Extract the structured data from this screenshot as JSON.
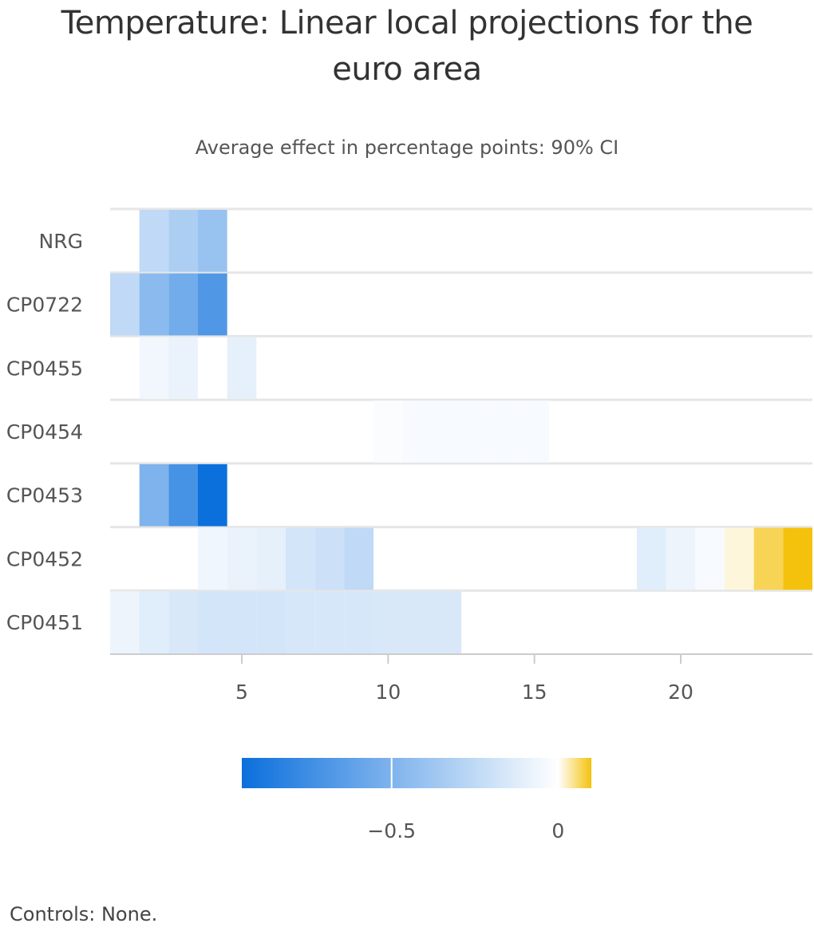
{
  "chart_data": {
    "type": "heatmap",
    "title": "Temperature: Linear local projections for the euro area",
    "subtitle": "Average effect in percentage points: 90% CI",
    "y_categories": [
      "NRG",
      "CP0722",
      "CP0455",
      "CP0454",
      "CP0453",
      "CP0452",
      "CP0451"
    ],
    "x_ticks": [
      5,
      10,
      15,
      20
    ],
    "x_range": [
      0.5,
      24.5
    ],
    "color_axis": {
      "min": -0.95,
      "max": 0.1,
      "min_color": "#0b6fdc",
      "mid_color": "#ffffff",
      "max_color": "#f4c20d",
      "ticks": [
        -0.5,
        0
      ],
      "tick_labels": [
        "−0.5",
        "0"
      ]
    },
    "cells": [
      {
        "row": "NRG",
        "x": 2,
        "value": -0.25
      },
      {
        "row": "NRG",
        "x": 3,
        "value": -0.32
      },
      {
        "row": "NRG",
        "x": 4,
        "value": -0.4
      },
      {
        "row": "CP0722",
        "x": 1,
        "value": -0.25
      },
      {
        "row": "CP0722",
        "x": 2,
        "value": -0.45
      },
      {
        "row": "CP0722",
        "x": 3,
        "value": -0.55
      },
      {
        "row": "CP0722",
        "x": 4,
        "value": -0.68
      },
      {
        "row": "CP0455",
        "x": 2,
        "value": -0.05
      },
      {
        "row": "CP0455",
        "x": 3,
        "value": -0.08
      },
      {
        "row": "CP0455",
        "x": 5,
        "value": -0.1
      },
      {
        "row": "CP0454",
        "x": 10,
        "value": -0.02
      },
      {
        "row": "CP0454",
        "x": 11,
        "value": -0.03
      },
      {
        "row": "CP0454",
        "x": 12,
        "value": -0.03
      },
      {
        "row": "CP0454",
        "x": 13,
        "value": -0.03
      },
      {
        "row": "CP0454",
        "x": 14,
        "value": -0.03
      },
      {
        "row": "CP0454",
        "x": 15,
        "value": -0.03
      },
      {
        "row": "CP0453",
        "x": 2,
        "value": -0.5
      },
      {
        "row": "CP0453",
        "x": 3,
        "value": -0.72
      },
      {
        "row": "CP0453",
        "x": 4,
        "value": -0.95
      },
      {
        "row": "CP0452",
        "x": 4,
        "value": -0.06
      },
      {
        "row": "CP0452",
        "x": 5,
        "value": -0.08
      },
      {
        "row": "CP0452",
        "x": 6,
        "value": -0.1
      },
      {
        "row": "CP0452",
        "x": 7,
        "value": -0.17
      },
      {
        "row": "CP0452",
        "x": 8,
        "value": -0.2
      },
      {
        "row": "CP0452",
        "x": 9,
        "value": -0.25
      },
      {
        "row": "CP0452",
        "x": 19,
        "value": -0.12
      },
      {
        "row": "CP0452",
        "x": 20,
        "value": -0.07
      },
      {
        "row": "CP0452",
        "x": 21,
        "value": -0.03
      },
      {
        "row": "CP0452",
        "x": 22,
        "value": 0.015
      },
      {
        "row": "CP0452",
        "x": 23,
        "value": 0.07
      },
      {
        "row": "CP0452",
        "x": 24,
        "value": 0.1
      },
      {
        "row": "CP0451",
        "x": 1,
        "value": -0.07
      },
      {
        "row": "CP0451",
        "x": 2,
        "value": -0.12
      },
      {
        "row": "CP0451",
        "x": 3,
        "value": -0.15
      },
      {
        "row": "CP0451",
        "x": 4,
        "value": -0.17
      },
      {
        "row": "CP0451",
        "x": 5,
        "value": -0.17
      },
      {
        "row": "CP0451",
        "x": 6,
        "value": -0.17
      },
      {
        "row": "CP0451",
        "x": 7,
        "value": -0.16
      },
      {
        "row": "CP0451",
        "x": 8,
        "value": -0.16
      },
      {
        "row": "CP0451",
        "x": 9,
        "value": -0.16
      },
      {
        "row": "CP0451",
        "x": 10,
        "value": -0.15
      },
      {
        "row": "CP0451",
        "x": 11,
        "value": -0.15
      },
      {
        "row": "CP0451",
        "x": 12,
        "value": -0.15
      }
    ]
  },
  "footnote": "Controls: None."
}
